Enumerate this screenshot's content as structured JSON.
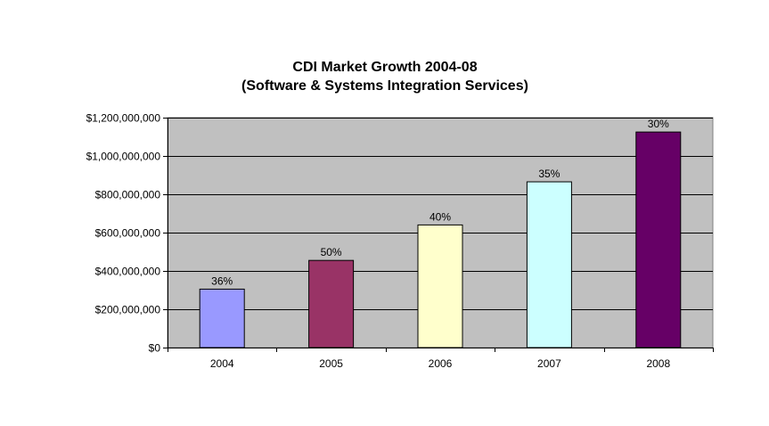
{
  "chart_data": {
    "type": "bar",
    "title": "CDI Market Growth 2004-08",
    "subtitle": "(Software & Systems Integration Services)",
    "categories": [
      "2004",
      "2005",
      "2006",
      "2007",
      "2008"
    ],
    "values": [
      305000000,
      455000000,
      640000000,
      865000000,
      1125000000
    ],
    "data_labels": [
      "36%",
      "50%",
      "40%",
      "35%",
      "30%"
    ],
    "bar_colors": [
      "#9999FF",
      "#993366",
      "#FFFFCC",
      "#CCFFFF",
      "#660066"
    ],
    "ylim": [
      0,
      1200000000
    ],
    "y_ticks": [
      0,
      200000000,
      400000000,
      600000000,
      800000000,
      1000000000,
      1200000000
    ],
    "y_tick_labels": [
      "$0",
      "$200,000,000",
      "$400,000,000",
      "$600,000,000",
      "$800,000,000",
      "$1,000,000,000",
      "$1,200,000,000"
    ],
    "grid": true,
    "plot_background": "#C0C0C0",
    "xlabel": "",
    "ylabel": ""
  }
}
